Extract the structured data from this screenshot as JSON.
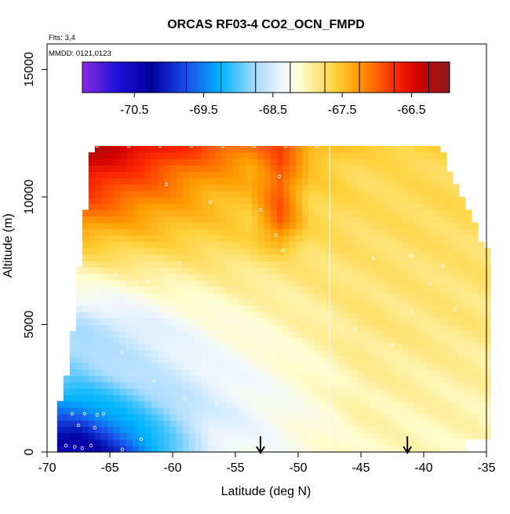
{
  "chart_data": {
    "type": "heatmap",
    "title": "ORCAS RF03-4 CO2_OCN_FMPD",
    "flights_note": "Flts: 3,4",
    "dates_note": "MMDD: 0121,0123",
    "xlabel": "Latitude (deg N)",
    "ylabel": "Altitude (m)",
    "xlim": [
      -70,
      -35
    ],
    "ylim": [
      0,
      16000
    ],
    "x_ticks": [
      -70,
      -65,
      -60,
      -55,
      -50,
      -45,
      -40,
      -35
    ],
    "y_ticks": [
      0,
      5000,
      10000,
      15000
    ],
    "x_tick_labels": [
      "-70",
      "-65",
      "-60",
      "-55",
      "-50",
      "-45",
      "-40",
      "-35"
    ],
    "y_tick_labels": [
      "0",
      "5000",
      "10000",
      "15000"
    ],
    "colorbar": {
      "range": [
        -71.25,
        -65.95
      ],
      "tick_values": [
        -70.5,
        -69.5,
        -68.5,
        -67.5,
        -66.5
      ],
      "tick_labels": [
        "-70.5",
        "-69.5",
        "-68.5",
        "-67.5",
        "-66.5"
      ],
      "divisions": [
        -70.25,
        -69.75,
        -69.25,
        -68.75,
        -68.25,
        -67.75,
        -67.25,
        -66.75,
        -66.25
      ],
      "color_stops": [
        {
          "v": -71.25,
          "c": "#8a2be2"
        },
        {
          "v": -70.75,
          "c": "#1e10d8"
        },
        {
          "v": -70.25,
          "c": "#0000a0"
        },
        {
          "v": -69.75,
          "c": "#1a4ce8"
        },
        {
          "v": -69.25,
          "c": "#00b4ff"
        },
        {
          "v": -68.75,
          "c": "#aadcff"
        },
        {
          "v": -68.35,
          "c": "#f0f6ff"
        },
        {
          "v": -68.1,
          "c": "#fffdd0"
        },
        {
          "v": -67.85,
          "c": "#ffe680"
        },
        {
          "v": -67.6,
          "c": "#ffd23a"
        },
        {
          "v": -67.25,
          "c": "#ff9a00"
        },
        {
          "v": -66.75,
          "c": "#ff2a00"
        },
        {
          "v": -66.4,
          "c": "#d00000"
        },
        {
          "v": -65.95,
          "c": "#8b1a1a"
        }
      ]
    },
    "max_altitude_by_latitude": [
      {
        "lat": -69.2,
        "alt": 0
      },
      {
        "lat": -69.0,
        "alt": 1900
      },
      {
        "lat": -68.2,
        "alt": 3400
      },
      {
        "lat": -67.4,
        "alt": 7500
      },
      {
        "lat": -67.0,
        "alt": 9300
      },
      {
        "lat": -66.6,
        "alt": 11500
      },
      {
        "lat": -66.4,
        "alt": 11900
      },
      {
        "lat": -38.5,
        "alt": 11900
      },
      {
        "lat": -38.0,
        "alt": 11000
      },
      {
        "lat": -35.0,
        "alt": 7900
      }
    ],
    "min_latitude_bottom_right": -36.5,
    "profile_by_altitude": [
      {
        "alt": 0,
        "south": -70.6,
        "mid": -68.4,
        "north": -68.05
      },
      {
        "alt": 1500,
        "south": -69.6,
        "mid": -68.5,
        "north": -68.0
      },
      {
        "alt": 3000,
        "south": -68.9,
        "mid": -68.4,
        "north": -67.95
      },
      {
        "alt": 5000,
        "south": -68.7,
        "mid": -68.2,
        "north": -67.85
      },
      {
        "alt": 7000,
        "south": -68.0,
        "mid": -67.9,
        "north": -67.8
      },
      {
        "alt": 8500,
        "south": -67.4,
        "mid": -67.6,
        "north": -67.75
      },
      {
        "alt": 10000,
        "south": -66.8,
        "mid": -67.4,
        "north": -67.7
      },
      {
        "alt": 11000,
        "south": -66.5,
        "mid": -67.2,
        "north": -67.7
      },
      {
        "alt": 12000,
        "south": -66.1,
        "mid": -66.9,
        "north": -67.6
      }
    ],
    "profile_latitudes": {
      "south": -67.5,
      "mid": -57.0,
      "north": -45.0
    },
    "anomaly_band": {
      "lat_center": -51.5,
      "lat_width": 2.4,
      "alt_min": 7500,
      "alt_max": 12000,
      "value": -66.8
    },
    "vertical_gap_latitude": -47.5,
    "flight_path_points": [
      {
        "lat": -68.5,
        "alt": 250
      },
      {
        "lat": -67.8,
        "alt": 200
      },
      {
        "lat": -67.2,
        "alt": 150
      },
      {
        "lat": -66.5,
        "alt": 250
      },
      {
        "lat": -68.0,
        "alt": 1500
      },
      {
        "lat": -67.0,
        "alt": 1500
      },
      {
        "lat": -66.0,
        "alt": 1450
      },
      {
        "lat": -65.5,
        "alt": 1500
      },
      {
        "lat": -67.5,
        "alt": 1050
      },
      {
        "lat": -66.2,
        "alt": 950
      },
      {
        "lat": -64.0,
        "alt": 100
      },
      {
        "lat": -62.5,
        "alt": 500
      },
      {
        "lat": -66.0,
        "alt": 12000
      },
      {
        "lat": -63.5,
        "alt": 12000
      },
      {
        "lat": -61.0,
        "alt": 12000
      },
      {
        "lat": -58.5,
        "alt": 12000
      },
      {
        "lat": -56.0,
        "alt": 12000
      },
      {
        "lat": -53.5,
        "alt": 12000
      },
      {
        "lat": -51.0,
        "alt": 12000
      },
      {
        "lat": -48.5,
        "alt": 12000
      },
      {
        "lat": -60.5,
        "alt": 10500
      },
      {
        "lat": -57.0,
        "alt": 9800
      },
      {
        "lat": -53.0,
        "alt": 9500
      },
      {
        "lat": -51.8,
        "alt": 8500
      },
      {
        "lat": -51.5,
        "alt": 10800
      },
      {
        "lat": -51.2,
        "alt": 7900
      },
      {
        "lat": -44.0,
        "alt": 7600
      },
      {
        "lat": -41.0,
        "alt": 7700
      },
      {
        "lat": -39.5,
        "alt": 6600
      },
      {
        "lat": -37.5,
        "alt": 5600
      },
      {
        "lat": -42.5,
        "alt": 4200
      },
      {
        "lat": -45.5,
        "alt": 4800
      },
      {
        "lat": -49.0,
        "alt": 3200
      },
      {
        "lat": -53.0,
        "alt": 2600
      },
      {
        "lat": -56.5,
        "alt": 1900
      },
      {
        "lat": -59.0,
        "alt": 2100
      },
      {
        "lat": -61.5,
        "alt": 2800
      },
      {
        "lat": -64.0,
        "alt": 3900
      },
      {
        "lat": -66.0,
        "alt": 6200
      },
      {
        "lat": -64.5,
        "alt": 7000
      },
      {
        "lat": -62.0,
        "alt": 6700
      },
      {
        "lat": -59.5,
        "alt": 7400
      },
      {
        "lat": -47.0,
        "alt": 1500
      },
      {
        "lat": -44.0,
        "alt": 900
      },
      {
        "lat": -41.0,
        "alt": 5500
      },
      {
        "lat": -38.5,
        "alt": 7300
      },
      {
        "lat": -55.5,
        "alt": 5200
      },
      {
        "lat": -57.5,
        "alt": 3600
      }
    ],
    "arrows": [
      {
        "lat": -53.0,
        "label": ""
      },
      {
        "lat": -41.3,
        "label": ""
      }
    ]
  }
}
